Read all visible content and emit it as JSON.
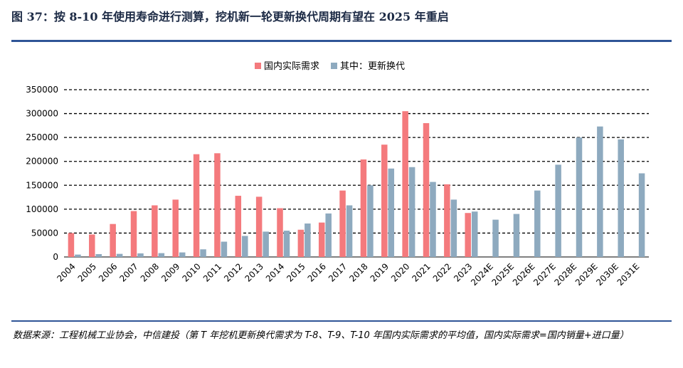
{
  "header": {
    "title": "图 37：按 8-10 年使用寿命进行测算，挖机新一轮更新换代周期有望在 2025 年重启"
  },
  "source": {
    "text": "数据来源：工程机械工业协会，中信建投（第 T 年挖机更新换代需求为 T-8、T-9、T-10 年国内实际需求的平均值，国内实际需求=国内销量+进口量）"
  },
  "colors": {
    "domestic": "#f47a7d",
    "replacement": "#8eaabf",
    "grid": "#000000",
    "rule": "#2f5597"
  },
  "chart_data": {
    "type": "bar",
    "title": "",
    "xlabel": "",
    "ylabel": "",
    "ylim": [
      0,
      350000
    ],
    "yticks": [
      0,
      50000,
      100000,
      150000,
      200000,
      250000,
      300000,
      350000
    ],
    "ytick_labels": [
      "0",
      "50000",
      "100000",
      "150000",
      "200000",
      "250000",
      "300000",
      "350000"
    ],
    "legend_position": "top-center",
    "grid": "dashed-horizontal",
    "categories": [
      "2004",
      "2005",
      "2006",
      "2007",
      "2008",
      "2009",
      "2010",
      "2011",
      "2012",
      "2013",
      "2014",
      "2015",
      "2016",
      "2017",
      "2018",
      "2019",
      "2020",
      "2021",
      "2022",
      "2023",
      "2024E",
      "2025E",
      "2026E",
      "2027E",
      "2028E",
      "2029E",
      "2030E",
      "2031E"
    ],
    "series": [
      {
        "name": "国内实际需求",
        "color": "#f47a7d",
        "values": [
          50000,
          47000,
          69000,
          96000,
          108000,
          120000,
          215000,
          217000,
          128000,
          126000,
          102000,
          57000,
          72000,
          139000,
          204000,
          235000,
          305000,
          280000,
          152000,
          92000,
          null,
          null,
          null,
          null,
          null,
          null,
          null,
          null
        ]
      },
      {
        "name": "其中：更新换代",
        "color": "#8eaabf",
        "values": [
          5000,
          6000,
          6500,
          7500,
          8000,
          9500,
          16000,
          32000,
          44000,
          53000,
          55000,
          70000,
          91000,
          108000,
          150000,
          185000,
          188000,
          157000,
          120000,
          95000,
          78000,
          90000,
          139000,
          193000,
          250000,
          273000,
          246000,
          175000
        ]
      }
    ]
  }
}
